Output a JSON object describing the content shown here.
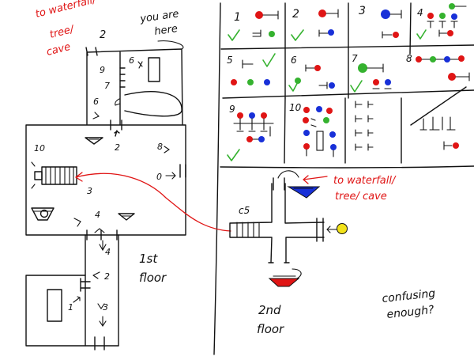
{
  "colors": {
    "ink": "#111111",
    "red": "#e01515",
    "green": "#35b22f",
    "blue": "#1830d8",
    "yellow": "#f2e21a"
  },
  "first_floor": {
    "label_line1": "1st",
    "label_line2": "floor",
    "note_red": [
      "to waterfall/",
      "tree/",
      "cave"
    ],
    "you_are_here": [
      "you are",
      "here"
    ],
    "room_numbers": {
      "n2_top": "2",
      "n9": "9",
      "n6_room": "6",
      "n7": "7",
      "n6_hall": "6",
      "n2_hall": "2",
      "n10": "10",
      "n8": "8",
      "n0": "0",
      "n3_left": "3",
      "n4": "4",
      "n4_b": "4",
      "n2_low": "2",
      "n1": "1",
      "n3_low": "3"
    }
  },
  "second_floor": {
    "label_line1": "2nd",
    "label_line2": "floor",
    "note_red": [
      "to waterfall/",
      "tree/ cave"
    ],
    "c5": "c5"
  },
  "legend": {
    "cells": [
      "1",
      "2",
      "3",
      "4",
      "5",
      "6",
      "7",
      "8",
      "9",
      "10"
    ]
  },
  "comment": [
    "confusing",
    "enough?"
  ]
}
